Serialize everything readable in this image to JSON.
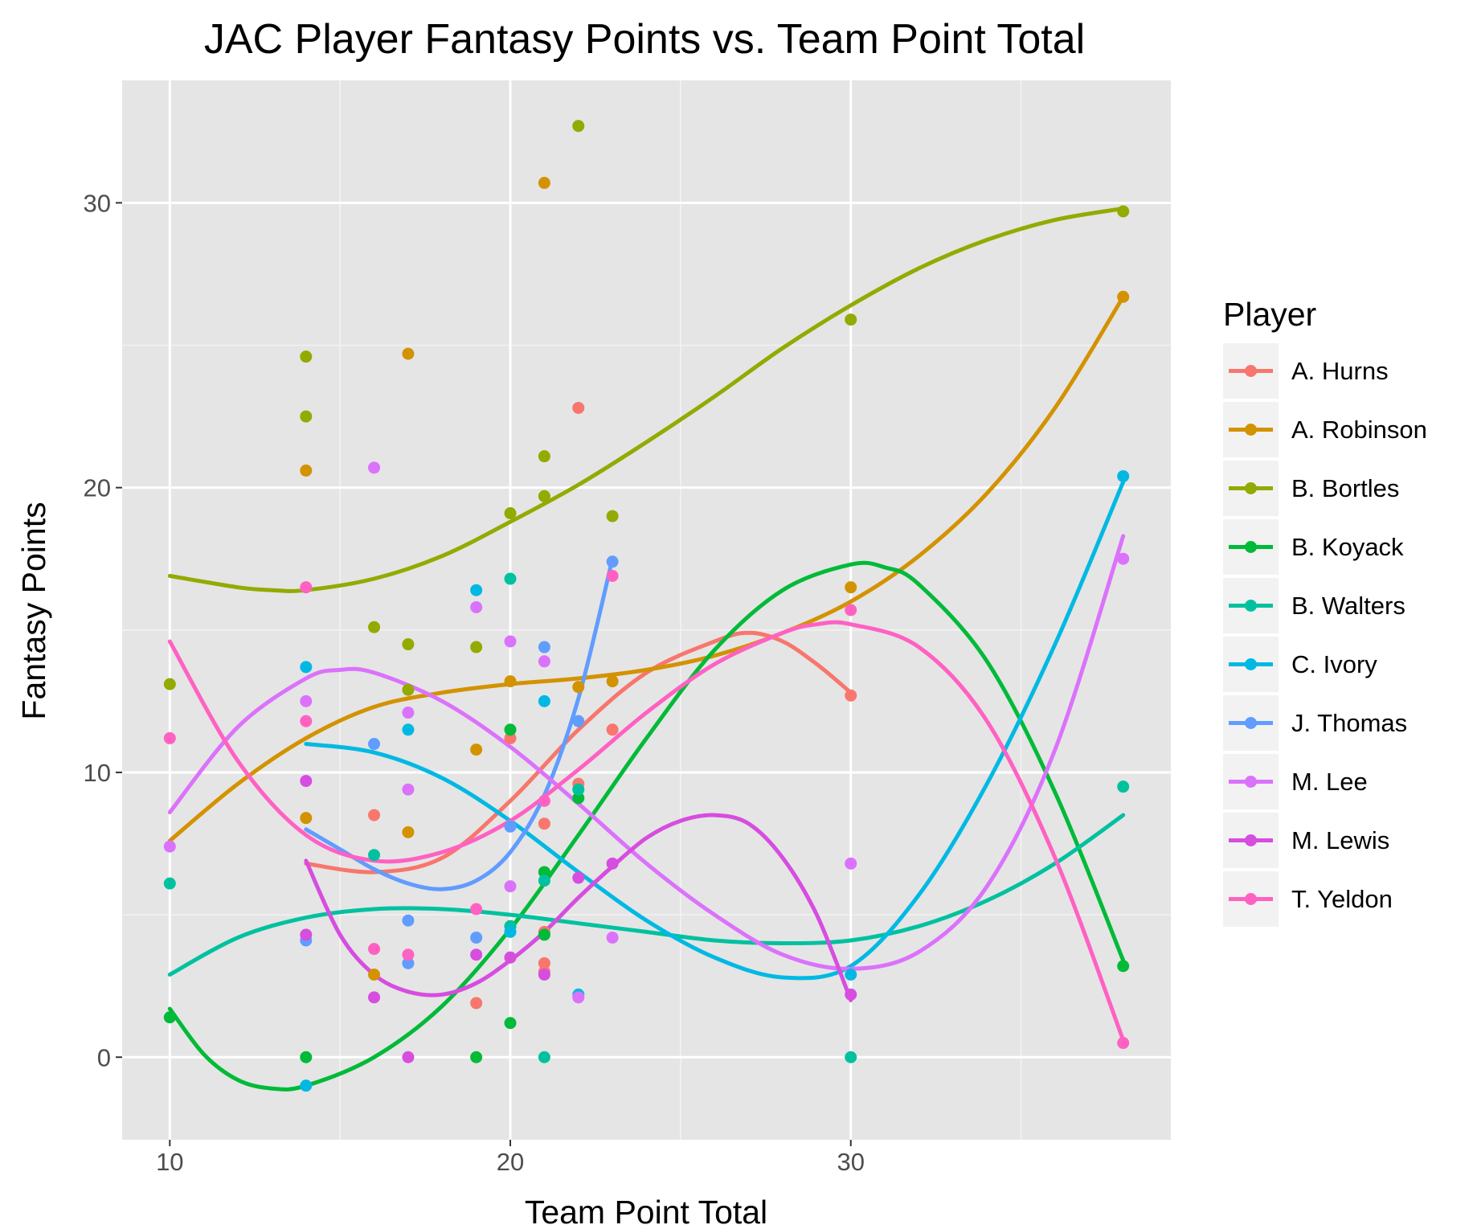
{
  "chart_data": {
    "type": "scatter",
    "title": "JAC Player Fantasy Points vs. Team Point Total",
    "xlabel": "Team Point Total",
    "ylabel": "Fantasy Points",
    "xlim": [
      8.6,
      39.4
    ],
    "ylim": [
      -2.9,
      34.3
    ],
    "x_ticks": [
      10,
      20,
      30
    ],
    "y_ticks": [
      0,
      10,
      20,
      30
    ],
    "grid": true,
    "legend": {
      "title": "Player",
      "position": "right"
    },
    "smoothing": "loess",
    "series": [
      {
        "name": "A. Hurns",
        "color": "#F8766D",
        "points": [
          [
            16,
            8.5
          ],
          [
            19,
            1.9
          ],
          [
            20,
            11.2
          ],
          [
            21,
            8.2
          ],
          [
            21,
            4.4
          ],
          [
            21,
            3.3
          ],
          [
            21,
            3.0
          ],
          [
            22,
            22.8
          ],
          [
            22,
            9.6
          ],
          [
            23,
            11.5
          ],
          [
            30,
            12.7
          ]
        ],
        "curve": [
          [
            14,
            6.8
          ],
          [
            16,
            6.5
          ],
          [
            18,
            7.0
          ],
          [
            20,
            9.0
          ],
          [
            22,
            11.5
          ],
          [
            24,
            13.5
          ],
          [
            26,
            14.6
          ],
          [
            27,
            14.9
          ],
          [
            28,
            14.6
          ],
          [
            29,
            13.8
          ],
          [
            30,
            12.8
          ]
        ]
      },
      {
        "name": "A. Robinson",
        "color": "#D39200",
        "points": [
          [
            14,
            20.6
          ],
          [
            14,
            8.4
          ],
          [
            16,
            2.9
          ],
          [
            17,
            24.7
          ],
          [
            17,
            7.9
          ],
          [
            19,
            10.8
          ],
          [
            20,
            13.2
          ],
          [
            20,
            3.5
          ],
          [
            21,
            30.7
          ],
          [
            22,
            13.0
          ],
          [
            23,
            13.2
          ],
          [
            30,
            16.5
          ],
          [
            38,
            26.7
          ]
        ],
        "curve": [
          [
            10,
            7.6
          ],
          [
            12,
            9.6
          ],
          [
            14,
            11.2
          ],
          [
            16,
            12.3
          ],
          [
            18,
            12.8
          ],
          [
            20,
            13.1
          ],
          [
            22,
            13.3
          ],
          [
            24,
            13.6
          ],
          [
            26,
            14.1
          ],
          [
            28,
            14.9
          ],
          [
            30,
            16.0
          ],
          [
            32,
            17.6
          ],
          [
            34,
            19.8
          ],
          [
            36,
            22.8
          ],
          [
            38,
            26.7
          ]
        ]
      },
      {
        "name": "B. Bortles",
        "color": "#93AA00",
        "points": [
          [
            10,
            13.1
          ],
          [
            14,
            24.6
          ],
          [
            14,
            22.5
          ],
          [
            16,
            15.1
          ],
          [
            17,
            14.5
          ],
          [
            17,
            12.9
          ],
          [
            19,
            14.4
          ],
          [
            20,
            19.1
          ],
          [
            21,
            21.1
          ],
          [
            21,
            19.7
          ],
          [
            22,
            32.7
          ],
          [
            23,
            19.0
          ],
          [
            30,
            25.9
          ],
          [
            38,
            29.7
          ]
        ],
        "curve": [
          [
            10,
            16.9
          ],
          [
            12,
            16.5
          ],
          [
            13,
            16.4
          ],
          [
            14,
            16.4
          ],
          [
            16,
            16.8
          ],
          [
            18,
            17.6
          ],
          [
            20,
            18.8
          ],
          [
            22,
            20.1
          ],
          [
            24,
            21.6
          ],
          [
            26,
            23.2
          ],
          [
            28,
            24.9
          ],
          [
            30,
            26.4
          ],
          [
            32,
            27.7
          ],
          [
            34,
            28.7
          ],
          [
            36,
            29.4
          ],
          [
            38,
            29.8
          ]
        ]
      },
      {
        "name": "B. Koyack",
        "color": "#00BA38",
        "points": [
          [
            10,
            1.4
          ],
          [
            14,
            0.0
          ],
          [
            19,
            0.0
          ],
          [
            20,
            11.5
          ],
          [
            20,
            4.6
          ],
          [
            20,
            1.2
          ],
          [
            21,
            6.5
          ],
          [
            21,
            4.3
          ],
          [
            22,
            9.1
          ],
          [
            38,
            3.2
          ]
        ],
        "curve": [
          [
            10,
            1.7
          ],
          [
            11,
            0.1
          ],
          [
            12,
            -0.8
          ],
          [
            13,
            -1.1
          ],
          [
            14,
            -1.0
          ],
          [
            16,
            0.0
          ],
          [
            18,
            1.8
          ],
          [
            20,
            4.5
          ],
          [
            22,
            7.8
          ],
          [
            24,
            11.2
          ],
          [
            26,
            14.3
          ],
          [
            28,
            16.4
          ],
          [
            30,
            17.3
          ],
          [
            31,
            17.2
          ],
          [
            32,
            16.6
          ],
          [
            34,
            13.9
          ],
          [
            36,
            9.3
          ],
          [
            38,
            3.4
          ]
        ]
      },
      {
        "name": "B. Walters",
        "color": "#00C19F",
        "points": [
          [
            10,
            6.1
          ],
          [
            16,
            7.1
          ],
          [
            20,
            16.8
          ],
          [
            20,
            4.6
          ],
          [
            21,
            6.2
          ],
          [
            21,
            0.0
          ],
          [
            22,
            9.4
          ],
          [
            30,
            0.0
          ],
          [
            38,
            9.5
          ]
        ],
        "curve": [
          [
            10,
            2.9
          ],
          [
            12,
            4.2
          ],
          [
            14,
            4.9
          ],
          [
            16,
            5.2
          ],
          [
            18,
            5.2
          ],
          [
            20,
            5.0
          ],
          [
            22,
            4.7
          ],
          [
            24,
            4.4
          ],
          [
            26,
            4.1
          ],
          [
            28,
            4.0
          ],
          [
            30,
            4.1
          ],
          [
            32,
            4.6
          ],
          [
            34,
            5.5
          ],
          [
            36,
            6.8
          ],
          [
            38,
            8.5
          ]
        ]
      },
      {
        "name": "C. Ivory",
        "color": "#00B9E3",
        "points": [
          [
            14,
            13.7
          ],
          [
            14,
            -1.0
          ],
          [
            17,
            11.5
          ],
          [
            19,
            16.4
          ],
          [
            20,
            4.4
          ],
          [
            21,
            12.5
          ],
          [
            22,
            2.2
          ],
          [
            30,
            2.9
          ],
          [
            38,
            20.4
          ]
        ],
        "curve": [
          [
            14,
            11.0
          ],
          [
            16,
            10.7
          ],
          [
            18,
            9.8
          ],
          [
            20,
            8.3
          ],
          [
            22,
            6.5
          ],
          [
            24,
            4.8
          ],
          [
            26,
            3.5
          ],
          [
            28,
            2.8
          ],
          [
            30,
            3.2
          ],
          [
            32,
            5.7
          ],
          [
            34,
            9.6
          ],
          [
            36,
            14.5
          ],
          [
            38,
            20.2
          ]
        ]
      },
      {
        "name": "J. Thomas",
        "color": "#619CFF",
        "points": [
          [
            14,
            4.1
          ],
          [
            16,
            11.0
          ],
          [
            17,
            4.8
          ],
          [
            17,
            3.3
          ],
          [
            19,
            4.2
          ],
          [
            20,
            8.1
          ],
          [
            21,
            14.4
          ],
          [
            22,
            11.8
          ],
          [
            23,
            17.4
          ]
        ],
        "curve": [
          [
            14,
            8.0
          ],
          [
            15,
            7.3
          ],
          [
            16,
            6.6
          ],
          [
            17,
            6.1
          ],
          [
            18,
            5.9
          ],
          [
            19,
            6.2
          ],
          [
            20,
            7.2
          ],
          [
            21,
            9.2
          ],
          [
            22,
            12.6
          ],
          [
            23,
            17.5
          ]
        ]
      },
      {
        "name": "M. Lee",
        "color": "#DB72FB",
        "points": [
          [
            10,
            7.4
          ],
          [
            14,
            12.5
          ],
          [
            16,
            20.7
          ],
          [
            17,
            12.1
          ],
          [
            17,
            9.4
          ],
          [
            19,
            15.8
          ],
          [
            20,
            14.6
          ],
          [
            20,
            6.0
          ],
          [
            21,
            13.9
          ],
          [
            22,
            2.1
          ],
          [
            23,
            4.2
          ],
          [
            30,
            6.8
          ],
          [
            38,
            17.5
          ]
        ],
        "curve": [
          [
            10,
            8.6
          ],
          [
            12,
            11.6
          ],
          [
            14,
            13.3
          ],
          [
            15,
            13.6
          ],
          [
            16,
            13.5
          ],
          [
            18,
            12.5
          ],
          [
            20,
            10.9
          ],
          [
            22,
            8.9
          ],
          [
            24,
            6.8
          ],
          [
            26,
            5.0
          ],
          [
            28,
            3.6
          ],
          [
            30,
            3.1
          ],
          [
            32,
            3.7
          ],
          [
            34,
            6.0
          ],
          [
            36,
            10.8
          ],
          [
            38,
            18.3
          ]
        ]
      },
      {
        "name": "M. Lewis",
        "color": "#D64DE0",
        "points": [
          [
            14,
            4.3
          ],
          [
            14,
            9.7
          ],
          [
            16,
            2.1
          ],
          [
            17,
            0.0
          ],
          [
            19,
            3.6
          ],
          [
            20,
            3.5
          ],
          [
            21,
            2.9
          ],
          [
            22,
            6.3
          ],
          [
            23,
            6.8
          ],
          [
            30,
            2.2
          ]
        ],
        "curve": [
          [
            14,
            6.9
          ],
          [
            15,
            4.3
          ],
          [
            16,
            2.9
          ],
          [
            17,
            2.3
          ],
          [
            18,
            2.2
          ],
          [
            19,
            2.6
          ],
          [
            20,
            3.4
          ],
          [
            21,
            4.4
          ],
          [
            22,
            5.6
          ],
          [
            23,
            6.7
          ],
          [
            24,
            7.7
          ],
          [
            25,
            8.3
          ],
          [
            26,
            8.5
          ],
          [
            27,
            8.2
          ],
          [
            28,
            7.0
          ],
          [
            29,
            5.0
          ],
          [
            30,
            2.0
          ]
        ]
      },
      {
        "name": "T. Yeldon",
        "color": "#FF61C3",
        "points": [
          [
            10,
            11.2
          ],
          [
            14,
            16.5
          ],
          [
            14,
            11.8
          ],
          [
            16,
            3.8
          ],
          [
            17,
            3.6
          ],
          [
            19,
            5.2
          ],
          [
            21,
            9.0
          ],
          [
            23,
            16.9
          ],
          [
            30,
            15.7
          ],
          [
            38,
            0.5
          ]
        ],
        "curve": [
          [
            10,
            14.6
          ],
          [
            12,
            10.4
          ],
          [
            14,
            7.8
          ],
          [
            16,
            6.9
          ],
          [
            18,
            7.2
          ],
          [
            20,
            8.3
          ],
          [
            22,
            10.1
          ],
          [
            24,
            12.1
          ],
          [
            26,
            13.8
          ],
          [
            28,
            14.9
          ],
          [
            29,
            15.2
          ],
          [
            30,
            15.2
          ],
          [
            32,
            14.4
          ],
          [
            34,
            11.8
          ],
          [
            36,
            7.0
          ],
          [
            38,
            0.6
          ]
        ]
      }
    ]
  }
}
